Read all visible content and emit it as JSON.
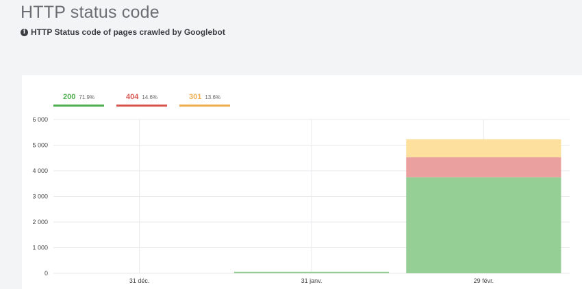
{
  "header": {
    "title": "HTTP status code",
    "subtitle": "HTTP Status code of pages crawled by Googlebot",
    "info_icon": "info-circle-icon"
  },
  "legend": [
    {
      "code": "200",
      "percent": "71.9%",
      "color": "#4cae4c"
    },
    {
      "code": "404",
      "percent": "14.6%",
      "color": "#d9534f"
    },
    {
      "code": "301",
      "percent": "13.6%",
      "color": "#f0ad4e"
    }
  ],
  "chart_data": {
    "type": "bar",
    "stacked": true,
    "categories": [
      "31 déc.",
      "31 janv.",
      "29 févr."
    ],
    "series": [
      {
        "name": "200",
        "values": [
          0,
          60,
          3750
        ],
        "color": "#96cf96"
      },
      {
        "name": "404",
        "values": [
          0,
          0,
          780
        ],
        "color": "#eaa09e"
      },
      {
        "name": "301",
        "values": [
          0,
          0,
          700
        ],
        "color": "#fde09e"
      }
    ],
    "yticks": [
      "0",
      "1 000",
      "2 000",
      "3 000",
      "4 000",
      "5 000",
      "6 000"
    ],
    "ylim": [
      0,
      6000
    ],
    "grid": true,
    "legend_position": "top-left"
  }
}
